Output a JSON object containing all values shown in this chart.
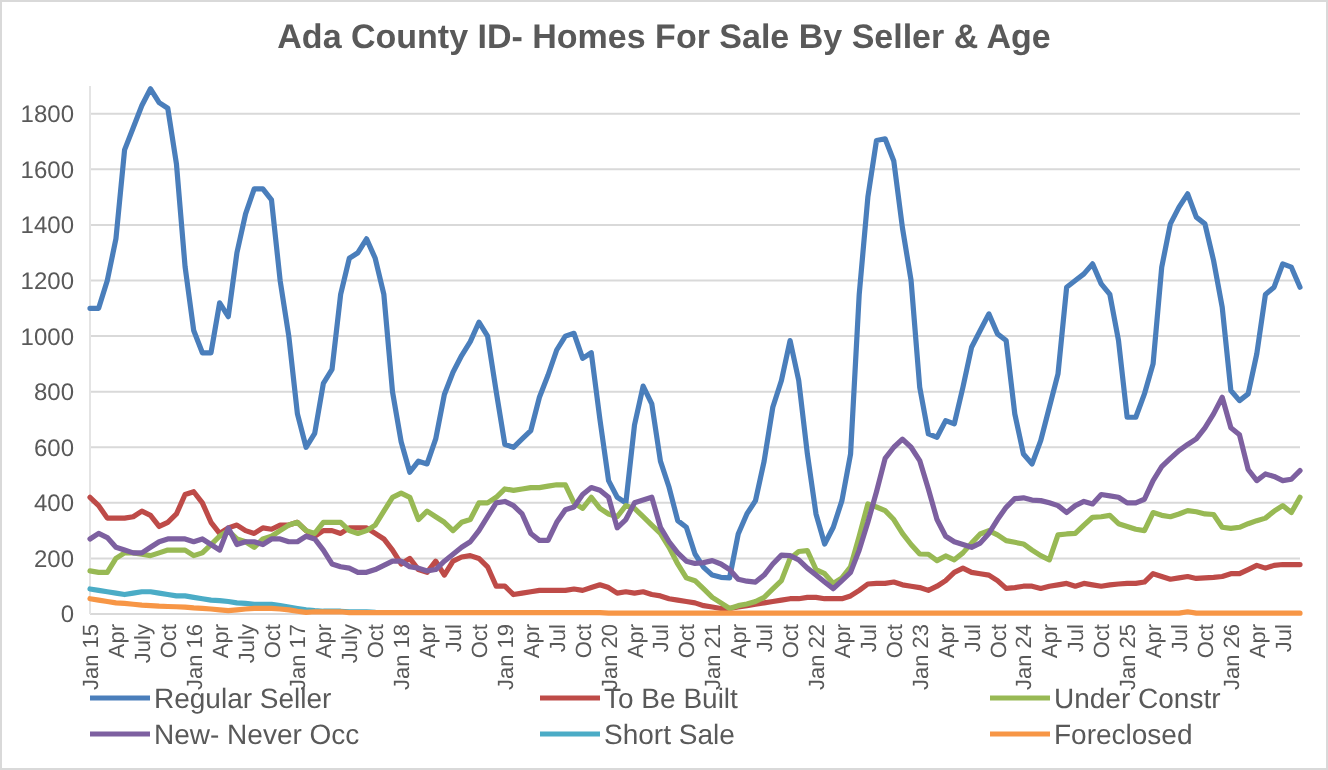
{
  "chart_data": {
    "type": "line",
    "title": "Ada County ID- Homes For Sale By Seller & Age",
    "categories": [
      "Jan 15",
      null,
      null,
      "Apr",
      null,
      null,
      "July",
      null,
      null,
      "Oct",
      null,
      null,
      "Jan 16",
      null,
      null,
      "Apr",
      null,
      null,
      "July",
      null,
      null,
      "Oct",
      null,
      null,
      "Jan 17",
      null,
      null,
      "Apr",
      null,
      null,
      "July",
      null,
      null,
      "Oct",
      null,
      null,
      "Jan 18",
      null,
      null,
      "Apr",
      null,
      null,
      "Jul",
      null,
      null,
      "Oct",
      null,
      null,
      "Jan 19",
      null,
      null,
      "Apr",
      null,
      null,
      "Jul",
      null,
      null,
      "Oct",
      null,
      null,
      "Jan 20",
      null,
      null,
      "Apr",
      null,
      null,
      "Jul",
      null,
      null,
      "Oct",
      null,
      null,
      "Jan 21",
      null,
      null,
      "Apr",
      null,
      null,
      "Jul",
      null,
      null,
      "Oct",
      null,
      null,
      "Jan 22",
      null,
      null,
      "Apr",
      null,
      null,
      "Jul",
      null,
      null,
      "Oct",
      null,
      null,
      "Jan 23",
      null,
      null,
      "Apr",
      null,
      null,
      "Jul",
      null,
      null,
      "Oct",
      null,
      null,
      "Jan 24",
      null,
      null,
      "Apr",
      null,
      null,
      "Jul",
      null,
      null,
      "Oct",
      null,
      null,
      "Jan 25",
      null,
      null,
      "Apr",
      null,
      null,
      "Jul",
      null,
      null,
      "Oct",
      null,
      null,
      "Jan 26",
      null,
      null,
      "Apr",
      null,
      null,
      "Jul",
      null,
      null
    ],
    "series": [
      {
        "name": "Regular Seller",
        "color": "#4a7ebb",
        "values": [
          1100,
          1100,
          1200,
          1350,
          1670,
          1750,
          1830,
          1890,
          1840,
          1820,
          1620,
          1250,
          1020,
          940,
          940,
          1120,
          1070,
          1300,
          1440,
          1530,
          1530,
          1490,
          1200,
          1000,
          720,
          600,
          650,
          830,
          880,
          1150,
          1280,
          1300,
          1350,
          1280,
          1150,
          800,
          620,
          510,
          550,
          540,
          630,
          790,
          870,
          930,
          980,
          1050,
          1000,
          800,
          610,
          600,
          630,
          660,
          780,
          860,
          950,
          1000,
          1010,
          920,
          940,
          700,
          480,
          420,
          400,
          680,
          820,
          756,
          550,
          456,
          336,
          312,
          216,
          168,
          140,
          132,
          130,
          288,
          360,
          408,
          550,
          744,
          840,
          984,
          840,
          576,
          360,
          252,
          312,
          408,
          576,
          1150,
          1500,
          1704,
          1710,
          1630,
          1390,
          1200,
          816,
          648,
          636,
          696,
          684,
          816,
          960,
          1020,
          1080,
          1008,
          984,
          720,
          576,
          540,
          624,
          744,
          864,
          1176,
          1200,
          1224,
          1260,
          1188,
          1150,
          984,
          708,
          708,
          792,
          900,
          1248,
          1404,
          1464,
          1512,
          1428,
          1404,
          1272,
          1104,
          804,
          768,
          792,
          936,
          1150,
          1176,
          1260,
          1248,
          1176
        ]
      },
      {
        "name": "To Be Built",
        "color": "#be4b48",
        "values": [
          420,
          390,
          345,
          345,
          345,
          350,
          370,
          355,
          315,
          330,
          360,
          430,
          440,
          400,
          330,
          290,
          310,
          320,
          300,
          290,
          310,
          305,
          320,
          320,
          330,
          300,
          280,
          300,
          300,
          290,
          310,
          310,
          310,
          290,
          270,
          230,
          180,
          200,
          160,
          150,
          190,
          140,
          190,
          205,
          210,
          200,
          170,
          100,
          100,
          70,
          75,
          80,
          85,
          85,
          85,
          85,
          90,
          85,
          95,
          105,
          95,
          75,
          80,
          75,
          80,
          70,
          65,
          55,
          50,
          45,
          40,
          30,
          25,
          20,
          20,
          25,
          30,
          35,
          40,
          45,
          50,
          55,
          55,
          60,
          60,
          55,
          55,
          55,
          65,
          85,
          108,
          110,
          110,
          115,
          105,
          100,
          95,
          85,
          100,
          120,
          150,
          165,
          150,
          145,
          140,
          120,
          92,
          95,
          100,
          100,
          92,
          100,
          105,
          110,
          100,
          110,
          105,
          100,
          105,
          108,
          110,
          110,
          115,
          145,
          135,
          125,
          130,
          135,
          128,
          130,
          132,
          135,
          145,
          145,
          160,
          175,
          165,
          175,
          178,
          178,
          178
        ]
      },
      {
        "name": "Under Constr",
        "color": "#98b954",
        "values": [
          155,
          150,
          150,
          200,
          220,
          220,
          215,
          210,
          220,
          230,
          230,
          230,
          210,
          220,
          250,
          280,
          300,
          270,
          260,
          240,
          270,
          280,
          300,
          320,
          330,
          300,
          290,
          330,
          330,
          330,
          300,
          290,
          300,
          320,
          370,
          420,
          435,
          420,
          340,
          370,
          350,
          330,
          300,
          330,
          340,
          400,
          400,
          420,
          450,
          445,
          450,
          455,
          455,
          460,
          465,
          465,
          400,
          380,
          420,
          380,
          360,
          350,
          390,
          380,
          350,
          320,
          290,
          240,
          180,
          130,
          120,
          90,
          60,
          40,
          20,
          30,
          36,
          45,
          60,
          90,
          120,
          200,
          225,
          228,
          160,
          145,
          110,
          130,
          170,
          280,
          396,
          385,
          372,
          340,
          290,
          250,
          216,
          215,
          192,
          209,
          195,
          220,
          255,
          288,
          300,
          285,
          264,
          258,
          252,
          230,
          210,
          195,
          285,
          288,
          290,
          320,
          348,
          350,
          355,
          325,
          315,
          305,
          300,
          365,
          355,
          350,
          360,
          372,
          368,
          360,
          358,
          312,
          308,
          312,
          325,
          336,
          345,
          370,
          390,
          365,
          420
        ]
      },
      {
        "name": "New- Never Occ",
        "color": "#7d60a0",
        "values": [
          270,
          290,
          275,
          240,
          230,
          220,
          220,
          240,
          260,
          270,
          270,
          270,
          260,
          270,
          250,
          230,
          310,
          250,
          260,
          260,
          250,
          270,
          270,
          260,
          260,
          280,
          270,
          230,
          180,
          170,
          165,
          150,
          150,
          160,
          175,
          190,
          190,
          170,
          165,
          155,
          160,
          190,
          215,
          240,
          260,
          300,
          350,
          400,
          405,
          390,
          360,
          290,
          265,
          265,
          330,
          375,
          385,
          430,
          455,
          445,
          420,
          310,
          340,
          400,
          410,
          420,
          312,
          260,
          220,
          190,
          182,
          185,
          192,
          180,
          160,
          125,
          118,
          115,
          140,
          180,
          212,
          210,
          195,
          165,
          140,
          115,
          91,
          120,
          150,
          230,
          330,
          440,
          560,
          600,
          629,
          600,
          552,
          450,
          340,
          280,
          260,
          250,
          240,
          255,
          290,
          340,
          384,
          415,
          418,
          410,
          408,
          400,
          390,
          365,
          390,
          405,
          396,
          430,
          425,
          420,
          400,
          400,
          413,
          480,
          530,
          560,
          588,
          610,
          630,
          670,
          720,
          780,
          670,
          645,
          520,
          480,
          504,
          495,
          480,
          485,
          516
        ]
      },
      {
        "name": "Short Sale",
        "color": "#4bacc6",
        "values": [
          90,
          85,
          80,
          75,
          70,
          75,
          80,
          80,
          75,
          70,
          65,
          65,
          60,
          55,
          50,
          48,
          45,
          40,
          38,
          35,
          35,
          35,
          30,
          25,
          20,
          15,
          12,
          10,
          10,
          10,
          8,
          8,
          8,
          6,
          null,
          null,
          null,
          null,
          null,
          null,
          null,
          null,
          null,
          null,
          null,
          null,
          null,
          null,
          null,
          null,
          null,
          null,
          null,
          null,
          null,
          null,
          null,
          null,
          null,
          null,
          null,
          null,
          null,
          null,
          null,
          null,
          null,
          null,
          null,
          null,
          null,
          null,
          null,
          null,
          null,
          null,
          null,
          null,
          null,
          null,
          null,
          null,
          null,
          null,
          null,
          null,
          null,
          null,
          null,
          null,
          null,
          null,
          null,
          null,
          null,
          null,
          null,
          null,
          null,
          null,
          null,
          null,
          null,
          null,
          null,
          null,
          null,
          null,
          null,
          null,
          null,
          null,
          null,
          null,
          null,
          null,
          null,
          null,
          null,
          null,
          null,
          null,
          null,
          null,
          null,
          null,
          null,
          null,
          null,
          null,
          null,
          null,
          null,
          null,
          null,
          null,
          null,
          null,
          null,
          null,
          null
        ]
      },
      {
        "name": "Foreclosed",
        "color": "#f79646",
        "values": [
          55,
          50,
          45,
          40,
          38,
          35,
          32,
          30,
          28,
          27,
          26,
          25,
          22,
          20,
          18,
          15,
          12,
          15,
          18,
          20,
          20,
          20,
          18,
          15,
          10,
          6,
          8,
          8,
          8,
          8,
          5,
          5,
          5,
          5,
          5,
          5,
          5,
          5,
          5,
          5,
          5,
          5,
          5,
          5,
          5,
          5,
          5,
          5,
          5,
          5,
          5,
          5,
          5,
          5,
          5,
          5,
          5,
          5,
          5,
          5,
          3,
          3,
          3,
          3,
          3,
          3,
          3,
          3,
          3,
          3,
          3,
          3,
          3,
          3,
          3,
          3,
          3,
          3,
          3,
          3,
          3,
          3,
          3,
          3,
          3,
          3,
          3,
          3,
          3,
          3,
          3,
          3,
          3,
          3,
          3,
          3,
          3,
          3,
          3,
          3,
          3,
          3,
          3,
          3,
          3,
          3,
          3,
          3,
          3,
          3,
          3,
          3,
          3,
          3,
          3,
          3,
          3,
          3,
          3,
          3,
          3,
          3,
          3,
          3,
          3,
          3,
          3,
          8,
          3,
          3,
          3,
          3,
          3,
          3,
          3,
          3,
          3,
          3,
          3,
          3,
          3
        ]
      }
    ],
    "ylim": [
      0,
      1900
    ],
    "yticks": [
      0,
      200,
      400,
      600,
      800,
      1000,
      1200,
      1400,
      1600,
      1800
    ],
    "grid": "y",
    "legend": "bottom",
    "marker": "none",
    "line_style": "solid"
  }
}
